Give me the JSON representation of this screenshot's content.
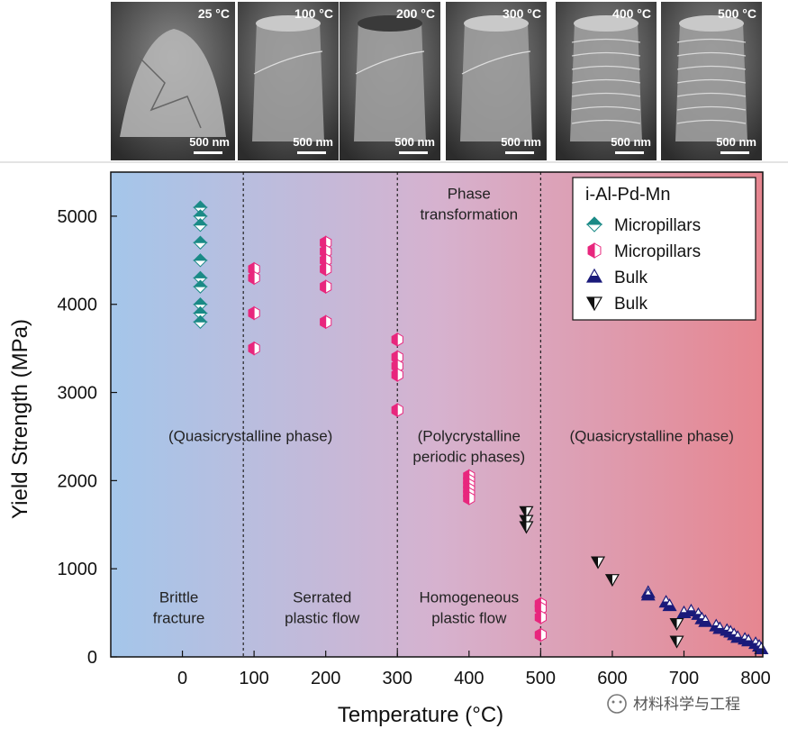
{
  "micrographs": [
    {
      "temp": "25 °C",
      "scale": "500 nm"
    },
    {
      "temp": "100 °C",
      "scale": "500 nm"
    },
    {
      "temp": "200 °C",
      "scale": "500 nm"
    },
    {
      "temp": "300 °C",
      "scale": "500 nm"
    },
    {
      "temp": "400 °C",
      "scale": "500 nm"
    },
    {
      "temp": "500 °C",
      "scale": "500 nm"
    }
  ],
  "watermark": "材料科学与工程",
  "chart_data": {
    "type": "scatter",
    "xlabel": "Temperature (°C)",
    "ylabel": "Yield Strength (MPa)",
    "xlim": [
      -100,
      810
    ],
    "ylim": [
      0,
      5500
    ],
    "xticks": [
      0,
      100,
      200,
      300,
      400,
      500,
      600,
      700,
      800
    ],
    "yticks": [
      0,
      1000,
      2000,
      3000,
      4000,
      5000
    ],
    "grid": false,
    "legend_position": "top-right",
    "legend_title": "i-Al-Pd-Mn",
    "background": {
      "left_color": "#a4c6ea",
      "mid_color": "#d6b2cf",
      "right_color": "#e68690"
    },
    "dividers_x": [
      85,
      300,
      500
    ],
    "region_labels": [
      {
        "text": [
          "(Quasicrystalline phase)"
        ],
        "x": 95,
        "y": 2450
      },
      {
        "text": [
          "Phase",
          "transformation"
        ],
        "x": 400,
        "y": 5200
      },
      {
        "text": [
          "(Polycrystalline",
          "periodic phases)"
        ],
        "x": 400,
        "y": 2450
      },
      {
        "text": [
          "(Quasicrystalline phase)"
        ],
        "x": 655,
        "y": 2450
      },
      {
        "text": [
          "Brittle",
          "fracture"
        ],
        "x": -5,
        "y": 620
      },
      {
        "text": [
          "Serrated",
          "plastic flow"
        ],
        "x": 195,
        "y": 620
      },
      {
        "text": [
          "Homogeneous",
          "plastic flow"
        ],
        "x": 400,
        "y": 620
      }
    ],
    "series": [
      {
        "name": "Micropillars",
        "marker": "diamond-split",
        "color": "#1a8a86",
        "points": [
          [
            25,
            5100
          ],
          [
            25,
            5000
          ],
          [
            25,
            4900
          ],
          [
            25,
            4700
          ],
          [
            25,
            4500
          ],
          [
            25,
            4300
          ],
          [
            25,
            4200
          ],
          [
            25,
            4000
          ],
          [
            25,
            3900
          ],
          [
            25,
            3800
          ]
        ]
      },
      {
        "name": "Micropillars",
        "marker": "hexagon-split",
        "color": "#e8267d",
        "points": [
          [
            100,
            4400
          ],
          [
            100,
            4300
          ],
          [
            100,
            3900
          ],
          [
            100,
            3500
          ],
          [
            200,
            4700
          ],
          [
            200,
            4600
          ],
          [
            200,
            4500
          ],
          [
            200,
            4400
          ],
          [
            200,
            4200
          ],
          [
            200,
            3800
          ],
          [
            300,
            3600
          ],
          [
            300,
            3400
          ],
          [
            300,
            3300
          ],
          [
            300,
            3200
          ],
          [
            300,
            2800
          ],
          [
            400,
            2050
          ],
          [
            400,
            2000
          ],
          [
            400,
            1950
          ],
          [
            400,
            1900
          ],
          [
            400,
            1850
          ],
          [
            400,
            1800
          ],
          [
            500,
            600
          ],
          [
            500,
            550
          ],
          [
            500,
            450
          ],
          [
            500,
            250
          ]
        ]
      },
      {
        "name": "Bulk",
        "marker": "triangle-up-split",
        "color": "#1a1a7a",
        "points": [
          [
            650,
            730
          ],
          [
            650,
            700
          ],
          [
            675,
            620
          ],
          [
            680,
            580
          ],
          [
            700,
            500
          ],
          [
            710,
            520
          ],
          [
            720,
            480
          ],
          [
            725,
            430
          ],
          [
            730,
            400
          ],
          [
            745,
            350
          ],
          [
            750,
            320
          ],
          [
            760,
            300
          ],
          [
            765,
            280
          ],
          [
            770,
            250
          ],
          [
            775,
            220
          ],
          [
            785,
            200
          ],
          [
            790,
            180
          ],
          [
            800,
            150
          ],
          [
            805,
            120
          ],
          [
            808,
            90
          ]
        ]
      },
      {
        "name": "Bulk",
        "marker": "triangle-down-split",
        "color": "#111111",
        "points": [
          [
            480,
            1650
          ],
          [
            480,
            1550
          ],
          [
            480,
            1480
          ],
          [
            580,
            1080
          ],
          [
            600,
            880
          ],
          [
            690,
            380
          ],
          [
            690,
            180
          ]
        ]
      }
    ]
  }
}
